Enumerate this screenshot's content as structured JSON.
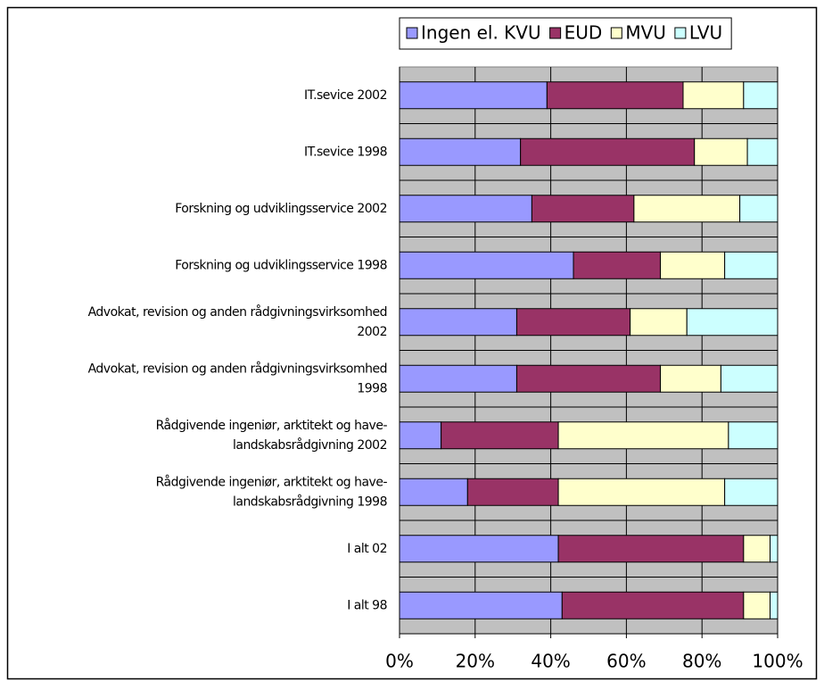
{
  "chart_data": {
    "type": "stacked_barh",
    "categories": [
      "IT.sevice 2002",
      "IT.sevice 1998",
      "Forskning og udviklingsservice 2002",
      "Forskning og udviklingsservice 1998",
      "Advokat, revision og anden rådgivningsvirksomhed\n2002",
      "Advokat, revision og anden rådgivningsvirksomhed\n1998",
      "Rådgivende ingeniør, arktitekt og have-\nlandskabsrådgivning 2002",
      "Rådgivende ingeniør, arktitekt og have-\nlandskabsrådgivning 1998",
      "I alt 02",
      "I alt 98"
    ],
    "series": [
      {
        "name": "Ingen el. KVU",
        "color": "#9999ff",
        "values": [
          39,
          32,
          35,
          46,
          31,
          31,
          11,
          18,
          42,
          43
        ]
      },
      {
        "name": "EUD",
        "color": "#993366",
        "values": [
          36,
          46,
          27,
          23,
          30,
          38,
          31,
          24,
          49,
          48
        ]
      },
      {
        "name": "MVU",
        "color": "#ffffcc",
        "values": [
          16,
          14,
          28,
          17,
          15,
          16,
          45,
          44,
          7,
          7
        ]
      },
      {
        "name": "LVU",
        "color": "#ccffff",
        "values": [
          9,
          8,
          10,
          14,
          24,
          15,
          13,
          14,
          2,
          2
        ]
      }
    ],
    "xlim": [
      0,
      100
    ],
    "xticks": [
      {
        "value": 0,
        "label": "0%"
      },
      {
        "value": 20,
        "label": "20%"
      },
      {
        "value": 40,
        "label": "40%"
      },
      {
        "value": 60,
        "label": "60%"
      },
      {
        "value": 80,
        "label": "80%"
      },
      {
        "value": 100,
        "label": "100%"
      }
    ],
    "grid": true,
    "legend": "top",
    "plot_background": "#c0c0c0"
  }
}
